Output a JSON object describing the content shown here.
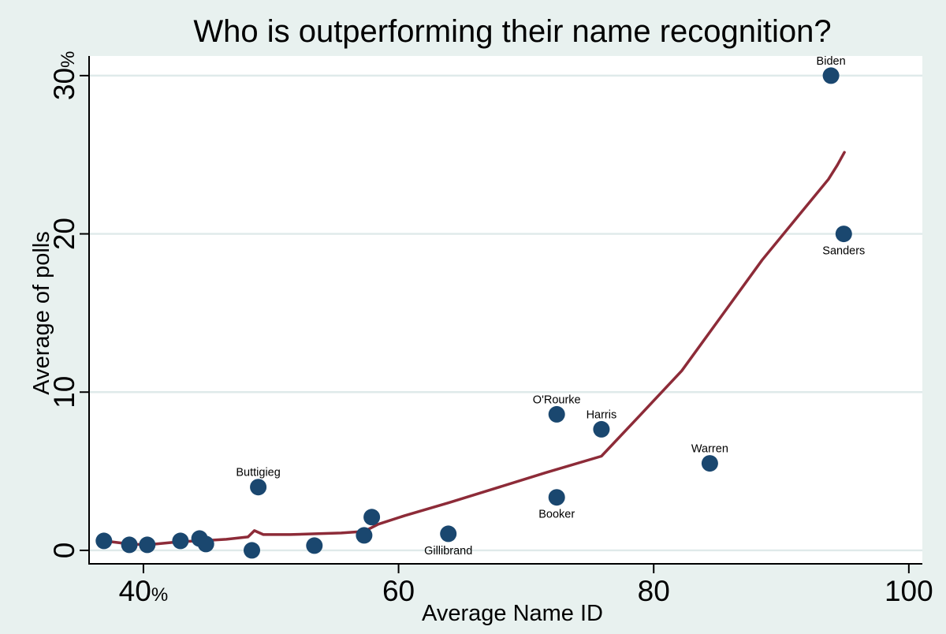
{
  "chart_data": {
    "type": "scatter",
    "title": "Who is outperforming their name recognition?",
    "xlabel": "Average Name ID",
    "ylabel": "Average of polls",
    "xlim": [
      35.74,
      101.06
    ],
    "ylim": [
      -0.85,
      31.24
    ],
    "grid": true,
    "legend": "none",
    "x_ticks": [
      {
        "value": 40,
        "label": "40",
        "suffix": "%"
      },
      {
        "value": 60,
        "label": "60",
        "suffix": ""
      },
      {
        "value": 80,
        "label": "80",
        "suffix": ""
      },
      {
        "value": 100,
        "label": "100",
        "suffix": ""
      }
    ],
    "y_ticks": [
      {
        "value": 0,
        "label": "0",
        "suffix": ""
      },
      {
        "value": 10,
        "label": "10",
        "suffix": ""
      },
      {
        "value": 20,
        "label": "20",
        "suffix": ""
      },
      {
        "value": 30,
        "label": "30",
        "suffix": "%"
      }
    ],
    "points": [
      {
        "x": 36.9,
        "y": 0.6,
        "label": "",
        "label_pos": ""
      },
      {
        "x": 38.9,
        "y": 0.35,
        "label": "",
        "label_pos": ""
      },
      {
        "x": 40.3,
        "y": 0.35,
        "label": "",
        "label_pos": ""
      },
      {
        "x": 42.9,
        "y": 0.6,
        "label": "",
        "label_pos": ""
      },
      {
        "x": 44.4,
        "y": 0.75,
        "label": "",
        "label_pos": ""
      },
      {
        "x": 44.9,
        "y": 0.4,
        "label": "",
        "label_pos": ""
      },
      {
        "x": 48.5,
        "y": 0.0,
        "label": "",
        "label_pos": ""
      },
      {
        "x": 49.0,
        "y": 4.0,
        "label": "Buttigieg",
        "label_pos": "above"
      },
      {
        "x": 53.4,
        "y": 0.3,
        "label": "",
        "label_pos": ""
      },
      {
        "x": 57.3,
        "y": 0.95,
        "label": "",
        "label_pos": ""
      },
      {
        "x": 57.9,
        "y": 2.1,
        "label": "",
        "label_pos": ""
      },
      {
        "x": 63.9,
        "y": 1.05,
        "label": "Gillibrand",
        "label_pos": "below"
      },
      {
        "x": 72.4,
        "y": 3.35,
        "label": "Booker",
        "label_pos": "below"
      },
      {
        "x": 72.4,
        "y": 8.6,
        "label": "O'Rourke",
        "label_pos": "above"
      },
      {
        "x": 75.9,
        "y": 7.65,
        "label": "Harris",
        "label_pos": "above"
      },
      {
        "x": 84.4,
        "y": 5.5,
        "label": "Warren",
        "label_pos": "above"
      },
      {
        "x": 93.9,
        "y": 30.0,
        "label": "Biden",
        "label_pos": "above"
      },
      {
        "x": 94.9,
        "y": 20.0,
        "label": "Sanders",
        "label_pos": "below"
      }
    ],
    "trend_line": {
      "name": "lowess-fit-line",
      "points": [
        [
          36.9,
          0.6
        ],
        [
          38.9,
          0.4
        ],
        [
          40.3,
          0.35
        ],
        [
          42.9,
          0.55
        ],
        [
          44.4,
          0.6
        ],
        [
          46.5,
          0.7
        ],
        [
          48.2,
          0.85
        ],
        [
          48.7,
          1.25
        ],
        [
          49.4,
          1.0
        ],
        [
          51.5,
          1.0
        ],
        [
          53.5,
          1.05
        ],
        [
          55.5,
          1.1
        ],
        [
          57.3,
          1.2
        ],
        [
          58.4,
          1.65
        ],
        [
          60.5,
          2.2
        ],
        [
          63.9,
          3.0
        ],
        [
          67.5,
          3.9
        ],
        [
          71.5,
          4.9
        ],
        [
          75.9,
          5.95
        ],
        [
          79.0,
          8.6
        ],
        [
          82.2,
          11.35
        ],
        [
          85.4,
          14.9
        ],
        [
          88.5,
          18.35
        ],
        [
          91.3,
          21.1
        ],
        [
          93.7,
          23.45
        ],
        [
          94.4,
          24.35
        ],
        [
          94.95,
          25.15
        ]
      ]
    },
    "colors": {
      "dot": "#1a476f",
      "line": "#8d2b38",
      "background": "#e8f1ef",
      "plot_background": "#ffffff",
      "gridline": "#dfeaea",
      "axis": "#000000",
      "text": "#000000"
    }
  }
}
